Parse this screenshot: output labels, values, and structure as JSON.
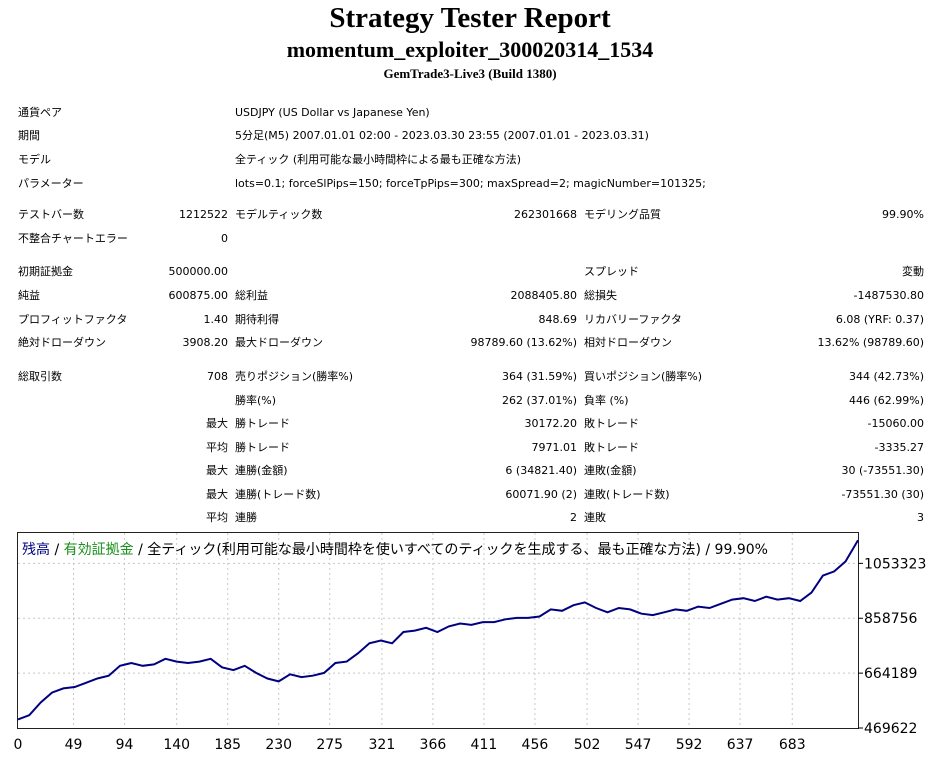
{
  "report": {
    "title": "Strategy Tester Report",
    "subtitle": "momentum_exploiter_300020314_1534",
    "build": "GemTrade3-Live3 (Build 1380)"
  },
  "info": {
    "symbol_label": "通貨ペア",
    "symbol_value": "USDJPY (US Dollar vs Japanese Yen)",
    "period_label": "期間",
    "period_value": "5分足(M5) 2007.01.01 02:00 - 2023.03.30 23:55 (2007.01.01 - 2023.03.31)",
    "model_label": "モデル",
    "model_value": "全ティック (利用可能な最小時間枠による最も正確な方法)",
    "params_label": "パラメーター",
    "params_value": "lots=0.1; forceSlPips=150; forceTpPips=300; maxSpread=2; magicNumber=101325;"
  },
  "stats": {
    "bars_label": "テストバー数",
    "bars_value": "1212522",
    "ticks_label": "モデルティック数",
    "ticks_value": "262301668",
    "quality_label": "モデリング品質",
    "quality_value": "99.90%",
    "mismatch_label": "不整合チャートエラー",
    "mismatch_value": "0",
    "deposit_label": "初期証拠金",
    "deposit_value": "500000.00",
    "spread_label": "スプレッド",
    "spread_value": "変動",
    "net_label": "純益",
    "net_value": "600875.00",
    "gross_profit_label": "総利益",
    "gross_profit_value": "2088405.80",
    "gross_loss_label": "総損失",
    "gross_loss_value": "-1487530.80",
    "pf_label": "プロフィットファクタ",
    "pf_value": "1.40",
    "expected_label": "期待利得",
    "expected_value": "848.69",
    "recovery_label": "リカバリーファクタ",
    "recovery_value": "6.08 (YRF: 0.37)",
    "abs_dd_label": "絶対ドローダウン",
    "abs_dd_value": "3908.20",
    "max_dd_label": "最大ドローダウン",
    "max_dd_value": "98789.60 (13.62%)",
    "rel_dd_label": "相対ドローダウン",
    "rel_dd_value": "13.62% (98789.60)",
    "trades_label": "総取引数",
    "trades_value": "708",
    "short_label": "売りポジション(勝率%)",
    "short_value": "364 (31.59%)",
    "long_label": "買いポジション(勝率%)",
    "long_value": "344 (42.73%)",
    "win_label": "勝率(%)",
    "win_value": "262 (37.01%)",
    "loss_label": "負率 (%)",
    "loss_value": "446 (62.99%)",
    "max_prefix": "最大",
    "avg_prefix": "平均",
    "largest_win_label": "勝トレード",
    "largest_win_value": "30172.20",
    "largest_loss_label": "敗トレード",
    "largest_loss_value": "-15060.00",
    "avg_win_label": "勝トレード",
    "avg_win_value": "7971.01",
    "avg_loss_label": "敗トレード",
    "avg_loss_value": "-3335.27",
    "consec_win_money_label": "連勝(金額)",
    "consec_win_money_value": "6 (34821.40)",
    "consec_loss_money_label": "連敗(金額)",
    "consec_loss_money_value": "30 (-73551.30)",
    "consec_win_trades_label": "連勝(トレード数)",
    "consec_win_trades_value": "60071.90 (2)",
    "consec_loss_trades_label": "連敗(トレード数)",
    "consec_loss_trades_value": "-73551.30 (30)",
    "avg_consec_win_label": "連勝",
    "avg_consec_win_value": "2",
    "avg_consec_loss_label": "連敗",
    "avg_consec_loss_value": "3"
  },
  "chart_caption": {
    "balance": "残高",
    "sep1": " / ",
    "equity": "有効証拠金",
    "rest": " / 全ティック(利用可能な最小時間枠を使いすべてのティックを生成する、最も正確な方法) / 99.90%"
  },
  "colors": {
    "balance_line": "#000080",
    "equity_caption": "#1a8f1a",
    "frame": "#222222",
    "grid": "#c8c8c8"
  },
  "chart_data": {
    "type": "line",
    "grid": true,
    "x_ticks": [
      0,
      49,
      94,
      140,
      185,
      230,
      275,
      321,
      366,
      411,
      456,
      502,
      547,
      592,
      637,
      683
    ],
    "y_ticks": [
      469622,
      664189,
      858756,
      1053323
    ],
    "xlim": [
      0,
      741
    ],
    "ylim": [
      469622,
      1161000
    ],
    "series": [
      {
        "name": "残高",
        "x": [
          0,
          10,
          20,
          30,
          40,
          50,
          60,
          70,
          80,
          90,
          100,
          110,
          120,
          130,
          140,
          150,
          160,
          170,
          180,
          190,
          200,
          210,
          220,
          230,
          240,
          250,
          260,
          270,
          280,
          290,
          300,
          310,
          320,
          330,
          340,
          350,
          360,
          370,
          380,
          390,
          400,
          410,
          420,
          430,
          440,
          450,
          460,
          470,
          480,
          490,
          500,
          510,
          520,
          530,
          540,
          550,
          560,
          570,
          580,
          590,
          600,
          610,
          620,
          630,
          640,
          650,
          660,
          670,
          680,
          690,
          700,
          710,
          720,
          730,
          741
        ],
        "values": [
          500000,
          515000,
          560000,
          595000,
          610000,
          615000,
          630000,
          645000,
          655000,
          690000,
          700000,
          690000,
          695000,
          715000,
          705000,
          700000,
          705000,
          715000,
          685000,
          675000,
          690000,
          665000,
          645000,
          635000,
          660000,
          650000,
          655000,
          665000,
          700000,
          705000,
          735000,
          770000,
          780000,
          770000,
          810000,
          815000,
          825000,
          810000,
          830000,
          840000,
          835000,
          845000,
          845000,
          855000,
          860000,
          860000,
          865000,
          890000,
          885000,
          905000,
          915000,
          895000,
          880000,
          895000,
          890000,
          875000,
          870000,
          880000,
          890000,
          885000,
          900000,
          895000,
          910000,
          925000,
          930000,
          920000,
          935000,
          925000,
          930000,
          920000,
          950000,
          1010000,
          1025000,
          1060000,
          1135000
        ]
      }
    ]
  }
}
